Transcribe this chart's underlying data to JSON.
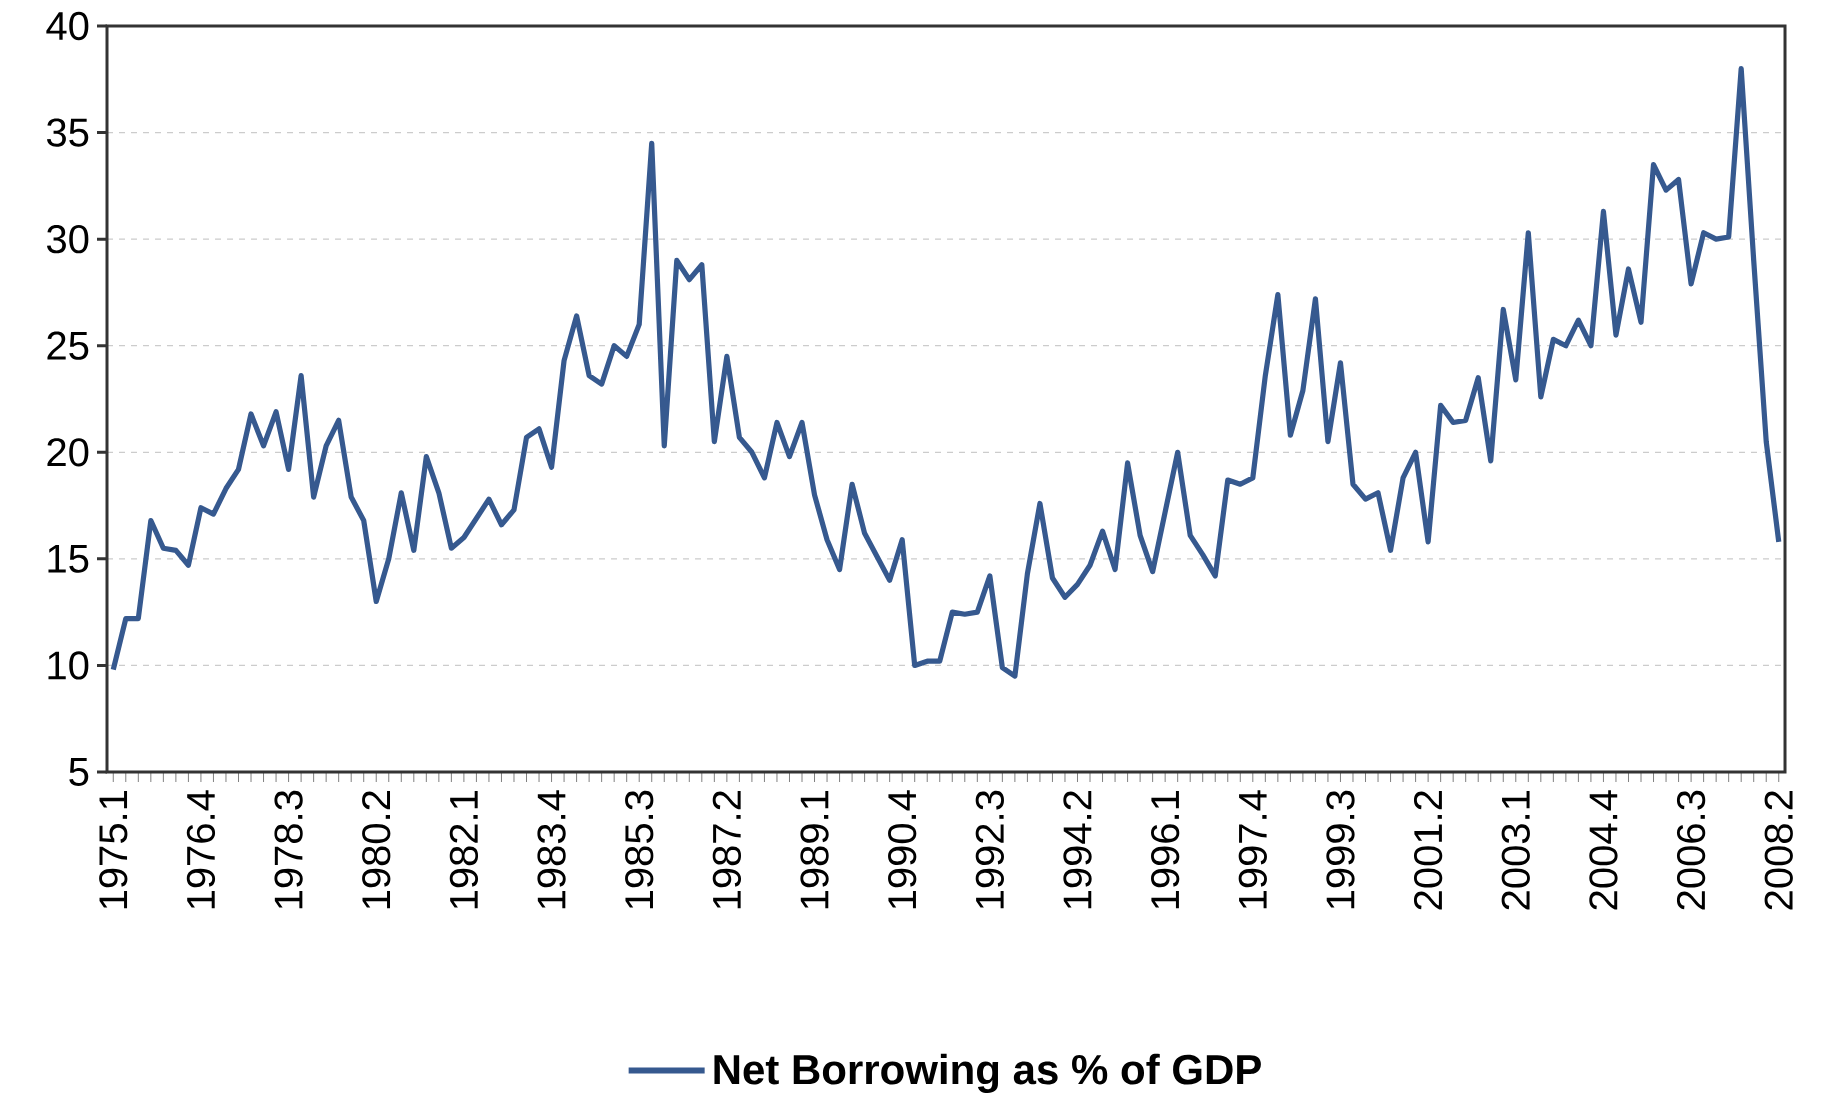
{
  "chart_data": {
    "type": "line",
    "categories": [
      "1975.1",
      null,
      null,
      null,
      null,
      null,
      null,
      "1976.4",
      null,
      null,
      null,
      null,
      null,
      null,
      "1978.3",
      null,
      null,
      null,
      null,
      null,
      null,
      "1980.2",
      null,
      null,
      null,
      null,
      null,
      null,
      "1982.1",
      null,
      null,
      null,
      null,
      null,
      null,
      "1983.4",
      null,
      null,
      null,
      null,
      null,
      null,
      "1985.3",
      null,
      null,
      null,
      null,
      null,
      null,
      "1987.2",
      null,
      null,
      null,
      null,
      null,
      null,
      "1989.1",
      null,
      null,
      null,
      null,
      null,
      null,
      "1990.4",
      null,
      null,
      null,
      null,
      null,
      null,
      "1992.3",
      null,
      null,
      null,
      null,
      null,
      null,
      "1994.2",
      null,
      null,
      null,
      null,
      null,
      null,
      "1996.1",
      null,
      null,
      null,
      null,
      null,
      null,
      "1997.4",
      null,
      null,
      null,
      null,
      null,
      null,
      "1999.3",
      null,
      null,
      null,
      null,
      null,
      null,
      "2001.2",
      null,
      null,
      null,
      null,
      null,
      null,
      "2003.1",
      null,
      null,
      null,
      null,
      null,
      null,
      "2004.4",
      null,
      null,
      null,
      null,
      null,
      null,
      "2006.3",
      null,
      null,
      null,
      null,
      null,
      null,
      "2008.2"
    ],
    "series": [
      {
        "name": "Net Borrowing as % of GDP",
        "color": "#36598f",
        "values": [
          9.8,
          12.2,
          12.2,
          16.8,
          15.5,
          15.4,
          14.7,
          17.4,
          17.1,
          18.3,
          19.2,
          21.8,
          20.3,
          21.9,
          19.2,
          23.6,
          17.9,
          20.3,
          21.5,
          17.9,
          16.8,
          13.0,
          15.0,
          18.1,
          15.4,
          19.8,
          18.1,
          15.5,
          16.0,
          16.9,
          17.8,
          16.6,
          17.3,
          20.7,
          21.1,
          19.3,
          24.3,
          26.4,
          23.6,
          23.2,
          25.0,
          24.5,
          26.0,
          34.5,
          20.3,
          29.0,
          28.1,
          28.8,
          20.5,
          24.5,
          20.7,
          20.0,
          18.8,
          21.4,
          19.8,
          21.4,
          18.0,
          15.9,
          14.5,
          18.5,
          16.2,
          15.1,
          14.0,
          15.9,
          10.0,
          10.2,
          10.2,
          12.5,
          12.4,
          12.5,
          14.2,
          9.9,
          9.5,
          14.3,
          17.6,
          14.1,
          13.2,
          13.8,
          14.7,
          16.3,
          14.5,
          19.5,
          16.1,
          14.4,
          17.2,
          20.0,
          16.1,
          15.2,
          14.2,
          18.7,
          18.5,
          18.8,
          23.6,
          27.4,
          20.8,
          22.9,
          27.2,
          20.5,
          24.2,
          18.5,
          17.8,
          18.1,
          15.4,
          18.8,
          20.0,
          15.8,
          22.2,
          21.4,
          21.5,
          23.5,
          19.6,
          26.7,
          23.4,
          30.3,
          22.6,
          25.3,
          25.0,
          26.2,
          25.0,
          31.3,
          25.5,
          28.6,
          26.1,
          33.5,
          32.3,
          32.8,
          27.9,
          30.3,
          30.0,
          30.1,
          38.0,
          29.0,
          20.5,
          15.8
        ]
      }
    ],
    "ylim": [
      5,
      40
    ],
    "yticks": [
      5,
      10,
      15,
      20,
      25,
      30,
      35,
      40
    ],
    "grid": "y",
    "legend": "bottom"
  }
}
